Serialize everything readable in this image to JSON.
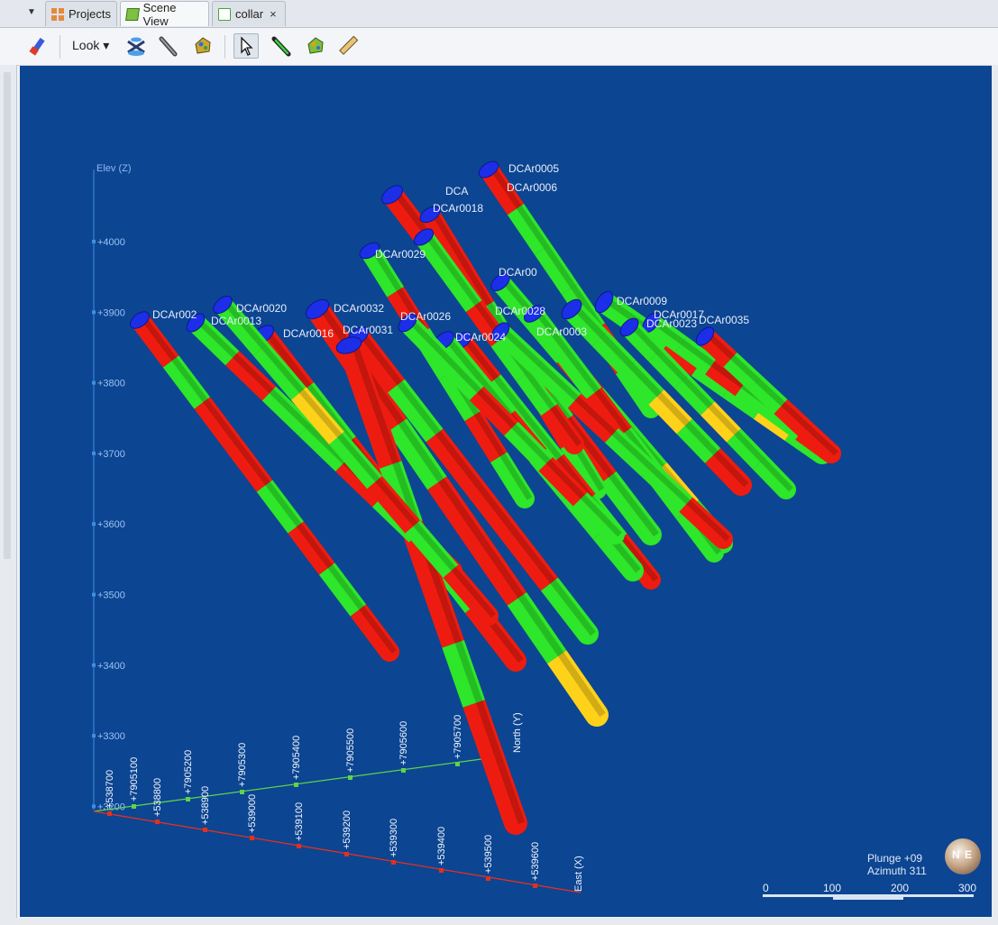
{
  "tabs": [
    {
      "label": "Projects",
      "icon": "projects-icon"
    },
    {
      "label": "Scene View",
      "icon": "scene-view-icon",
      "active": true
    },
    {
      "label": "collar",
      "icon": "table-icon",
      "closable": true
    }
  ],
  "tab_close_glyph": "×",
  "toolbar": {
    "look_label": "Look",
    "tools": [
      "pick-icon",
      "look-icon",
      "scene-tool-icon",
      "drill-icon",
      "ore-icon",
      "select-pointer-icon",
      "draw-line-icon",
      "surface-icon",
      "ruler-icon"
    ]
  },
  "scene": {
    "elev_axis_label": "Elev (Z)",
    "elev_ticks": [
      "+4000",
      "+3900",
      "+3800",
      "+3700",
      "+3600",
      "+3500",
      "+3400",
      "+3300",
      "+3200"
    ],
    "north_axis_label": "North (Y)",
    "north_ticks": [
      "+7905100",
      "+7905200",
      "+7905300",
      "+7905400",
      "+7905500",
      "+7905600",
      "+7905700"
    ],
    "east_axis_label": "East (X)",
    "east_ticks": [
      "+538700",
      "+538800",
      "+538900",
      "+539000",
      "+539100",
      "+539200",
      "+539300",
      "+539400",
      "+539500",
      "+539600"
    ],
    "hole_labels": [
      "DCAr0005",
      "DCAr0006",
      "DCAr0018",
      "DCA",
      "DCAr0029",
      "DCAr00",
      "DCAr002",
      "DCAr0020",
      "DCAr0013",
      "DCAr0016",
      "DCAr0032",
      "DCAr0031",
      "DCAr0026",
      "DCAr0024",
      "DCAr0028",
      "DCAr0009",
      "DCAr0017",
      "DCAr0023",
      "DCAr0035",
      "DCAr0003"
    ],
    "plunge": "Plunge +09",
    "azimuth": "Azimuth 311",
    "scale_ticks": [
      "0",
      "100",
      "200",
      "300"
    ],
    "compass_glyphs": [
      "N",
      "E"
    ],
    "colors": {
      "background": "#0c4592",
      "interval_red": "#ee1c10",
      "interval_green": "#2ee62a",
      "interval_yellow": "#ffd21a",
      "collar_blue": "#1d2ee8",
      "axis_elev": "#3f8fe0",
      "axis_north": "#5fd34a",
      "axis_east": "#e23020"
    }
  }
}
